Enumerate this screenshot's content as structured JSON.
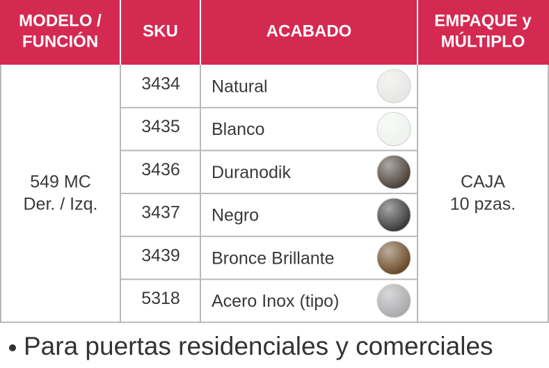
{
  "table": {
    "headers": [
      [
        "MODELO /",
        "FUNCIÓN"
      ],
      [
        "SKU"
      ],
      [
        "ACABADO"
      ],
      [
        "EMPAQUE y",
        "MÚLTIPLO"
      ]
    ],
    "model": [
      "549 MC",
      "Der. / Izq."
    ],
    "rows": [
      {
        "sku": "3434",
        "finish": "Natural",
        "swatch": "#e6e7e4"
      },
      {
        "sku": "3435",
        "finish": "Blanco",
        "swatch": "#eef3ee"
      },
      {
        "sku": "3436",
        "finish": "Duranodik",
        "swatch": "#4a4038"
      },
      {
        "sku": "3437",
        "finish": "Negro",
        "swatch": "#3a3a3a"
      },
      {
        "sku": "3439",
        "finish": "Bronce Brillante",
        "swatch": "#6b4a26"
      },
      {
        "sku": "5318",
        "finish": "Acero Inox (tipo)",
        "swatch": "#a9aaac"
      }
    ],
    "packaging": [
      "CAJA",
      "10 pzas."
    ]
  },
  "bullet": "Para puertas residenciales y comerciales"
}
